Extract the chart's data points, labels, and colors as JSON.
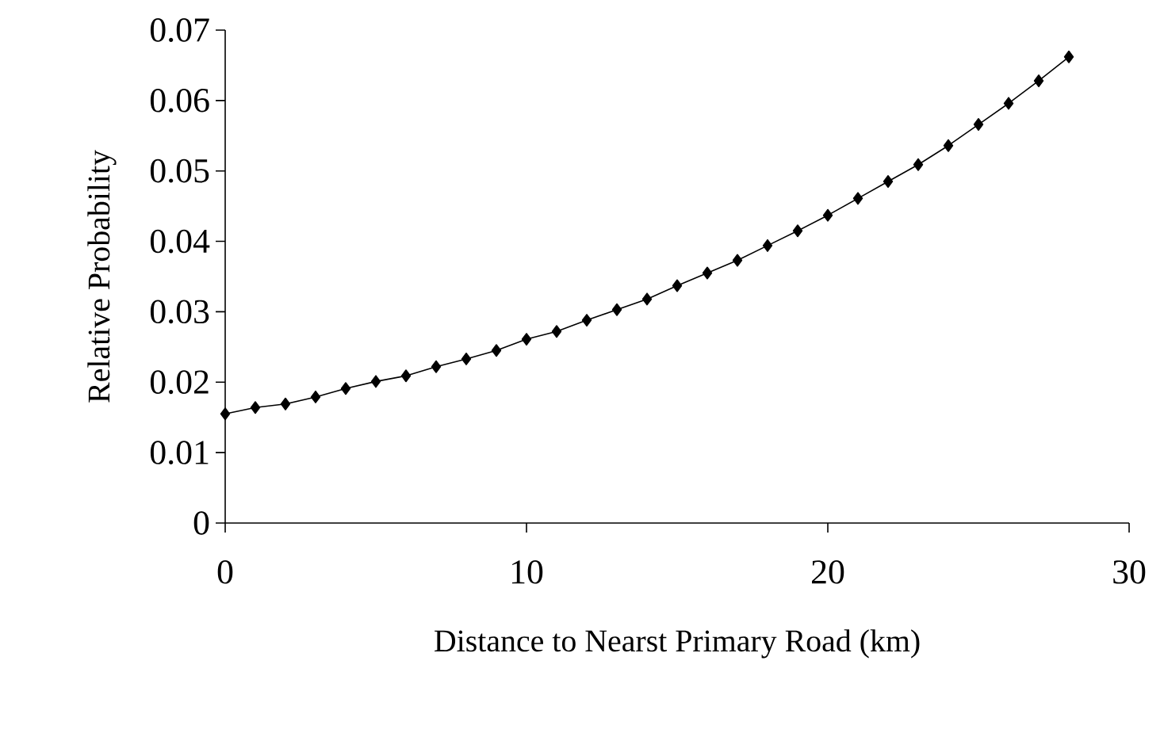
{
  "chart_data": {
    "type": "line",
    "xlabel": "Distance to Nearst Primary Road (km)",
    "ylabel": "Relative Probability",
    "x": [
      0,
      1,
      2,
      3,
      4,
      5,
      6,
      7,
      8,
      9,
      10,
      11,
      12,
      13,
      14,
      15,
      16,
      17,
      18,
      19,
      20,
      21,
      22,
      23,
      24,
      25,
      26,
      27,
      28
    ],
    "series": [
      {
        "color": "#000000",
        "values": [
          0.0155,
          0.0164,
          0.0169,
          0.0179,
          0.0191,
          0.0201,
          0.0209,
          0.0222,
          0.0233,
          0.0245,
          0.0261,
          0.0272,
          0.0288,
          0.0303,
          0.0318,
          0.0337,
          0.0355,
          0.0373,
          0.0394,
          0.0415,
          0.0437,
          0.0461,
          0.0485,
          0.0509,
          0.0536,
          0.0566,
          0.0596,
          0.0628,
          0.0662
        ]
      }
    ],
    "xlim": [
      0,
      30
    ],
    "xticks": [
      0,
      10,
      20,
      30
    ],
    "ylim": [
      0,
      0.07
    ],
    "yticks": [
      0,
      0.01,
      0.02,
      0.03,
      0.04,
      0.05,
      0.06,
      0.07
    ],
    "marker": "diamond",
    "line_style": "solid"
  }
}
